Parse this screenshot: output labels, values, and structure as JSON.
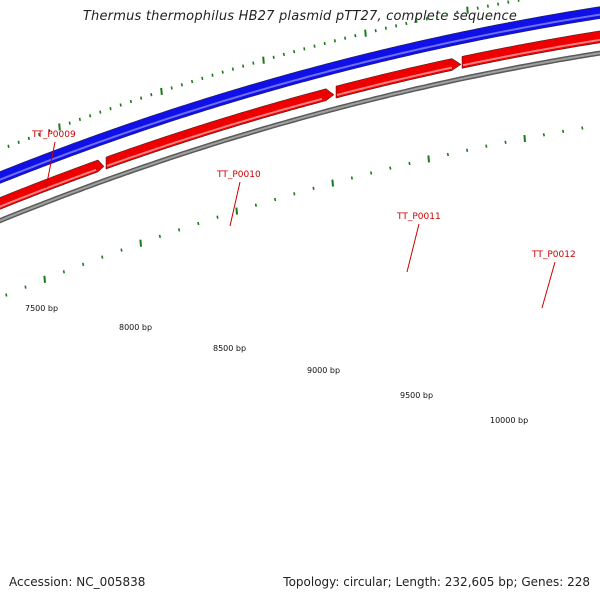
{
  "title": "Thermus thermophilus HB27 plasmid pTT27, complete sequence",
  "footer": {
    "accession": "Accession: NC_005838",
    "summary": "Topology: circular; Length: 232,605 bp; Genes: 228"
  },
  "colors": {
    "forward_strand": "#1010e8",
    "reverse_genes": "#ee0000",
    "backbone": "#808080",
    "ticks": "#1a7a1a",
    "gene_label": "#cc0000"
  },
  "genes": [
    {
      "label": "TT_P0009"
    },
    {
      "label": "TT_P0010"
    },
    {
      "label": "TT_P0011"
    },
    {
      "label": "TT_P0012"
    }
  ],
  "bp_labels": [
    "7500 bp",
    "8000 bp",
    "8500 bp",
    "9000 bp",
    "9500 bp",
    "10000 bp"
  ]
}
